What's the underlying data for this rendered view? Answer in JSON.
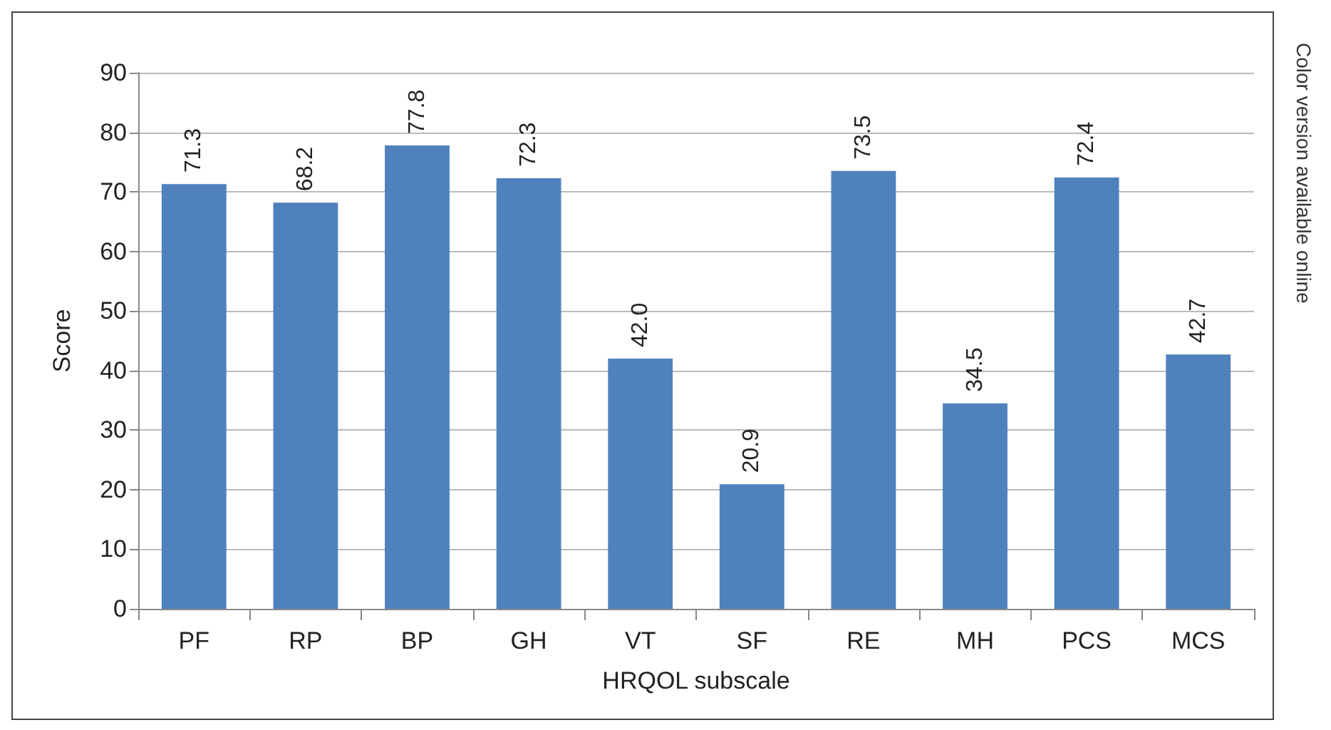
{
  "chart_data": {
    "type": "bar",
    "xlabel": "HRQOL subscale",
    "ylabel": "Score",
    "categories": [
      "PF",
      "RP",
      "BP",
      "GH",
      "VT",
      "SF",
      "RE",
      "MH",
      "PCS",
      "MCS"
    ],
    "values": [
      71.3,
      68.2,
      77.8,
      72.3,
      42.0,
      20.9,
      73.5,
      34.5,
      72.4,
      42.7
    ],
    "value_labels": [
      "71.3",
      "68.2",
      "77.8",
      "72.3",
      "42.0",
      "20.9",
      "73.5",
      "34.5",
      "72.4",
      "42.7"
    ],
    "color": "#4f81bd",
    "ylim": [
      0,
      90
    ],
    "yticks": [
      0,
      10,
      20,
      30,
      40,
      50,
      60,
      70,
      80,
      90
    ],
    "grid": "y",
    "annotations": [
      "Color version available online"
    ]
  }
}
